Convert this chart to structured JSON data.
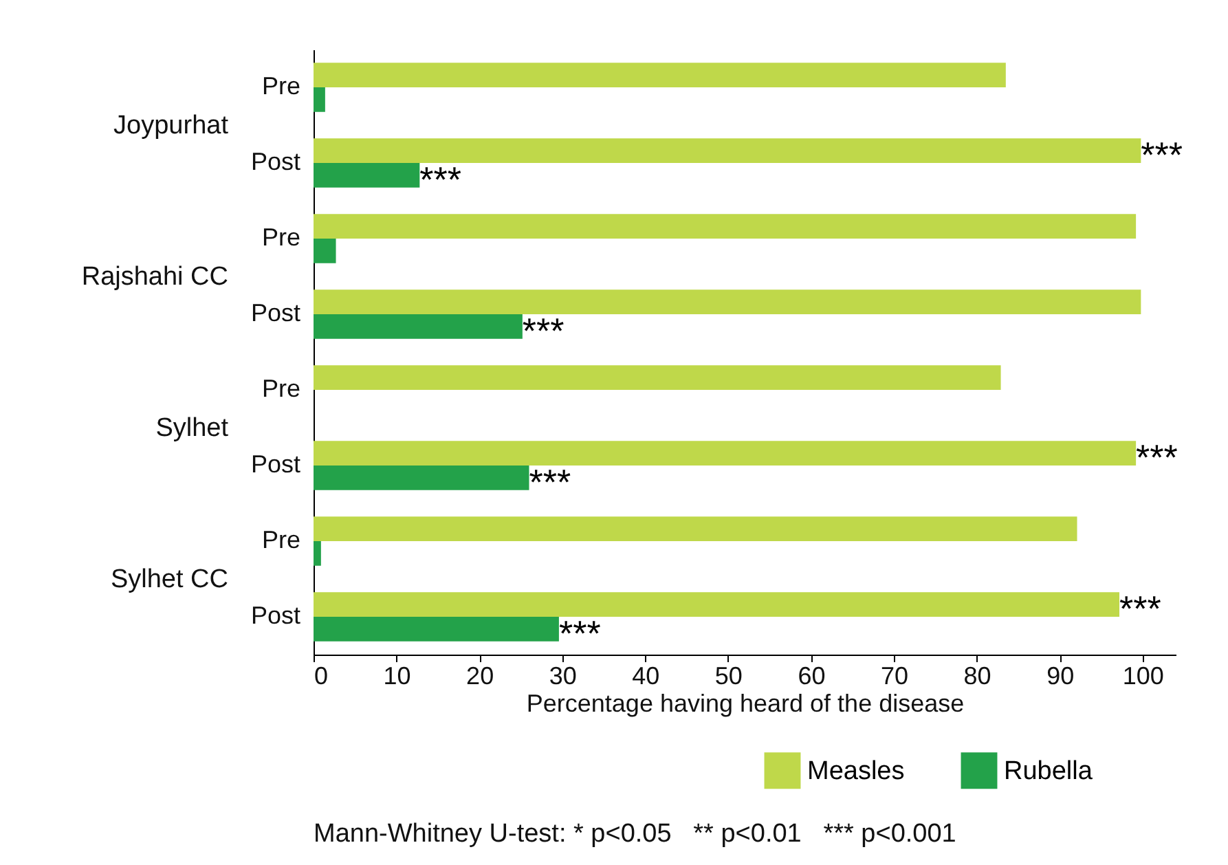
{
  "chart_data": {
    "type": "bar",
    "orientation": "horizontal",
    "xlabel": "Percentage having heard of the disease",
    "categories": [
      "Pre",
      "Post",
      "Pre",
      "Post",
      "Pre",
      "Post",
      "Pre",
      "Post"
    ],
    "series": [
      {
        "name": "Measles",
        "color": "#bfd84a",
        "values": [
          83.5,
          99.8,
          99.2,
          99.8,
          82.9,
          99.2,
          92.1,
          97.2
        ],
        "value_labels": [
          null,
          "***",
          null,
          null,
          null,
          "***",
          null,
          "***"
        ]
      },
      {
        "name": "Rubella",
        "color": "#23a24a",
        "values": [
          1.4,
          12.8,
          2.7,
          25.2,
          0,
          26.0,
          0.9,
          29.6
        ],
        "value_labels": [
          null,
          "***",
          null,
          "***",
          null,
          "***",
          null,
          "***"
        ]
      }
    ],
    "xlim": [
      0,
      104
    ],
    "xticks": [
      0,
      10,
      20,
      30,
      40,
      50,
      60,
      70,
      80,
      90,
      100
    ],
    "grid": false,
    "legend": "bottom right",
    "annotations": [
      "Joypurhat",
      "Rajshahi CC",
      "Sylhet",
      "Sylhet CC",
      "Mann-Whitney U-test: * p<0.05   ** p<0.01   *** p<0.001"
    ]
  }
}
